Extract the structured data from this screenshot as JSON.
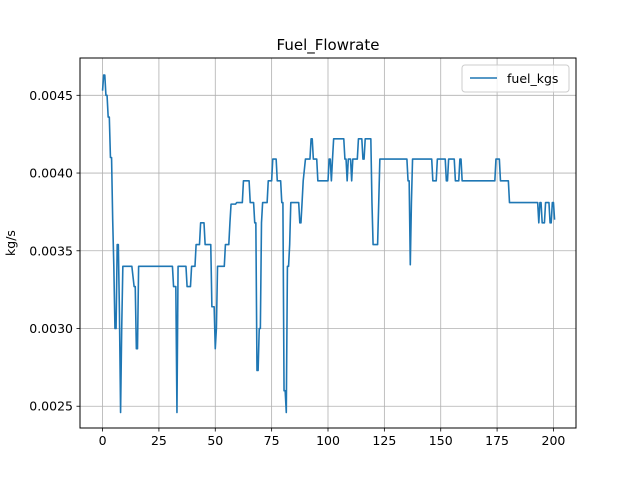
{
  "chart_data": {
    "type": "line",
    "title": "Fuel_Flowrate",
    "xlabel": "",
    "ylabel": "kg/s",
    "xlim": [
      -10,
      210
    ],
    "ylim": [
      0.00236,
      0.00474
    ],
    "grid": true,
    "legend_position": "top-right",
    "x_ticks": [
      0,
      25,
      50,
      75,
      100,
      125,
      150,
      175,
      200
    ],
    "x_tick_labels": [
      "0",
      "25",
      "50",
      "75",
      "100",
      "125",
      "150",
      "175",
      "200"
    ],
    "y_ticks": [
      0.0025,
      0.003,
      0.0035,
      0.004,
      0.0045
    ],
    "y_tick_labels": [
      "0.0025",
      "0.0030",
      "0.0035",
      "0.0040",
      "0.0045"
    ],
    "series": [
      {
        "name": "fuel_kgs",
        "color": "#1f77b4",
        "points": [
          [
            0,
            0.00453
          ],
          [
            0.5,
            0.00463
          ],
          [
            1,
            0.00463
          ],
          [
            1.5,
            0.0045
          ],
          [
            2,
            0.0045
          ],
          [
            2.5,
            0.00436
          ],
          [
            3,
            0.00436
          ],
          [
            3.5,
            0.0041
          ],
          [
            4,
            0.0041
          ],
          [
            4.5,
            0.0037
          ],
          [
            5,
            0.0034
          ],
          [
            5.5,
            0.003
          ],
          [
            6,
            0.003
          ],
          [
            6.5,
            0.00354
          ],
          [
            7,
            0.00354
          ],
          [
            7.5,
            0.0031
          ],
          [
            8,
            0.00246
          ],
          [
            8.5,
            0.003
          ],
          [
            9,
            0.0034
          ],
          [
            13,
            0.0034
          ],
          [
            14,
            0.00327
          ],
          [
            14.5,
            0.00327
          ],
          [
            15,
            0.00287
          ],
          [
            15.5,
            0.00287
          ],
          [
            16,
            0.0034
          ],
          [
            31,
            0.0034
          ],
          [
            31.5,
            0.00327
          ],
          [
            32.5,
            0.00327
          ],
          [
            33,
            0.00246
          ],
          [
            33.5,
            0.0034
          ],
          [
            37,
            0.0034
          ],
          [
            37.5,
            0.00327
          ],
          [
            39,
            0.00327
          ],
          [
            39.5,
            0.0034
          ],
          [
            41,
            0.0034
          ],
          [
            41.5,
            0.00354
          ],
          [
            43,
            0.00354
          ],
          [
            43.5,
            0.00368
          ],
          [
            45,
            0.00368
          ],
          [
            45.5,
            0.00354
          ],
          [
            48,
            0.00354
          ],
          [
            48.5,
            0.00314
          ],
          [
            49.5,
            0.00314
          ],
          [
            50,
            0.00287
          ],
          [
            50.5,
            0.003
          ],
          [
            51,
            0.0034
          ],
          [
            54,
            0.0034
          ],
          [
            54.5,
            0.00354
          ],
          [
            56,
            0.00354
          ],
          [
            56.5,
            0.00368
          ],
          [
            57,
            0.0038
          ],
          [
            59,
            0.0038
          ],
          [
            59.5,
            0.00381
          ],
          [
            62,
            0.00381
          ],
          [
            62.5,
            0.00395
          ],
          [
            65,
            0.00395
          ],
          [
            65.5,
            0.00381
          ],
          [
            67,
            0.00381
          ],
          [
            67.5,
            0.00368
          ],
          [
            68,
            0.00368
          ],
          [
            68.5,
            0.00273
          ],
          [
            69,
            0.00273
          ],
          [
            69.5,
            0.003
          ],
          [
            70,
            0.003
          ],
          [
            70.5,
            0.00368
          ],
          [
            71,
            0.00381
          ],
          [
            73,
            0.00381
          ],
          [
            73.5,
            0.00395
          ],
          [
            75,
            0.00395
          ],
          [
            75.5,
            0.00409
          ],
          [
            77,
            0.00409
          ],
          [
            77.5,
            0.00395
          ],
          [
            79,
            0.00395
          ],
          [
            79.5,
            0.00381
          ],
          [
            80,
            0.00381
          ],
          [
            80.5,
            0.0026
          ],
          [
            81,
            0.0026
          ],
          [
            81.5,
            0.00246
          ],
          [
            82,
            0.0034
          ],
          [
            82.5,
            0.0034
          ],
          [
            83,
            0.00354
          ],
          [
            83.5,
            0.00381
          ],
          [
            87,
            0.00381
          ],
          [
            87.5,
            0.00368
          ],
          [
            88,
            0.00368
          ],
          [
            88.5,
            0.00381
          ],
          [
            89,
            0.00395
          ],
          [
            90,
            0.00409
          ],
          [
            92,
            0.00409
          ],
          [
            92.5,
            0.00422
          ],
          [
            93,
            0.00422
          ],
          [
            93.5,
            0.00409
          ],
          [
            95,
            0.00409
          ],
          [
            95.5,
            0.00395
          ],
          [
            100,
            0.00395
          ],
          [
            100.5,
            0.00409
          ],
          [
            101,
            0.00409
          ],
          [
            101.5,
            0.00395
          ],
          [
            102,
            0.00409
          ],
          [
            102.5,
            0.00422
          ],
          [
            107,
            0.00422
          ],
          [
            107.5,
            0.00409
          ],
          [
            108,
            0.00409
          ],
          [
            108.5,
            0.00395
          ],
          [
            109,
            0.00409
          ],
          [
            110,
            0.00409
          ],
          [
            110.5,
            0.00395
          ],
          [
            111,
            0.00409
          ],
          [
            113,
            0.00409
          ],
          [
            113.5,
            0.00422
          ],
          [
            115,
            0.00422
          ],
          [
            115.5,
            0.00409
          ],
          [
            116,
            0.00409
          ],
          [
            116.5,
            0.00422
          ],
          [
            119,
            0.00422
          ],
          [
            119.5,
            0.00381
          ],
          [
            120,
            0.00354
          ],
          [
            122,
            0.00354
          ],
          [
            122.5,
            0.00381
          ],
          [
            123,
            0.00409
          ],
          [
            135,
            0.00409
          ],
          [
            135.5,
            0.00395
          ],
          [
            136,
            0.00395
          ],
          [
            136.5,
            0.00341
          ],
          [
            137,
            0.00381
          ],
          [
            137.5,
            0.00409
          ],
          [
            146,
            0.00409
          ],
          [
            146.5,
            0.00395
          ],
          [
            148,
            0.00395
          ],
          [
            148.5,
            0.00409
          ],
          [
            152,
            0.00409
          ],
          [
            152.5,
            0.00395
          ],
          [
            153,
            0.00395
          ],
          [
            153.5,
            0.00409
          ],
          [
            156,
            0.00409
          ],
          [
            156.5,
            0.00395
          ],
          [
            158,
            0.00395
          ],
          [
            158.5,
            0.00409
          ],
          [
            159,
            0.00409
          ],
          [
            159.5,
            0.00395
          ],
          [
            174,
            0.00395
          ],
          [
            174.5,
            0.00409
          ],
          [
            176,
            0.00409
          ],
          [
            176.5,
            0.00395
          ],
          [
            180,
            0.00395
          ],
          [
            180.5,
            0.00381
          ],
          [
            193,
            0.00381
          ],
          [
            193.5,
            0.00368
          ],
          [
            194,
            0.00381
          ],
          [
            194.5,
            0.00381
          ],
          [
            195,
            0.00368
          ],
          [
            196,
            0.00368
          ],
          [
            196.5,
            0.00381
          ],
          [
            198,
            0.00381
          ],
          [
            198.5,
            0.00368
          ],
          [
            199,
            0.00368
          ],
          [
            199.5,
            0.00381
          ],
          [
            200,
            0.00381
          ],
          [
            200.5,
            0.0037
          ]
        ]
      }
    ]
  }
}
